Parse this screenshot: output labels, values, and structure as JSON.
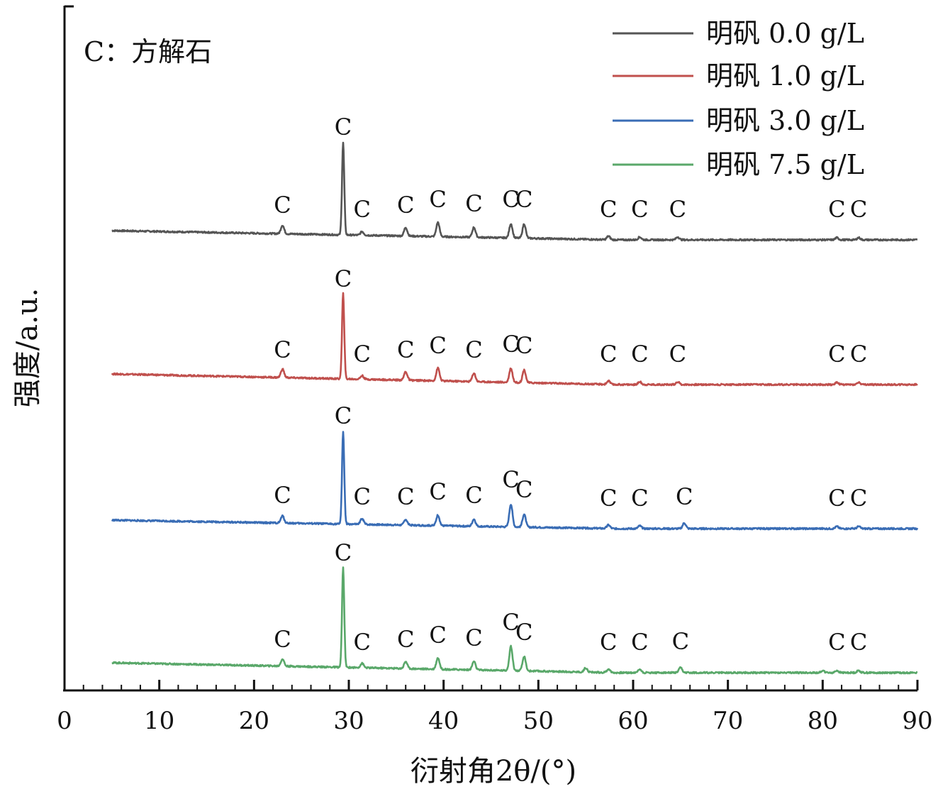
{
  "chart_data": {
    "type": "line",
    "title": "",
    "annotation": "C：方解石",
    "xlabel": "衍射角2θ/(°)",
    "ylabel": "强度/a.u.",
    "xlim": [
      0,
      90
    ],
    "xticks": [
      0,
      10,
      20,
      30,
      40,
      50,
      60,
      70,
      80,
      90
    ],
    "y_ticks_shown": false,
    "legend_position": "top-right",
    "peak_label_text": "C",
    "peak_positions": [
      23.0,
      29.4,
      31.4,
      36.0,
      39.4,
      43.2,
      47.1,
      48.5,
      57.4,
      60.7,
      64.7,
      81.5,
      83.8
    ],
    "series": [
      {
        "name": "明矾 0.0 g/L",
        "color": "#555555",
        "baseline_start": 13,
        "baseline_end": 0,
        "peaks": [
          {
            "x": 23.0,
            "h": 12
          },
          {
            "x": 29.4,
            "h": 130
          },
          {
            "x": 31.4,
            "h": 5
          },
          {
            "x": 36.0,
            "h": 12
          },
          {
            "x": 39.4,
            "h": 20
          },
          {
            "x": 43.2,
            "h": 14
          },
          {
            "x": 47.1,
            "h": 20
          },
          {
            "x": 48.5,
            "h": 20
          },
          {
            "x": 57.4,
            "h": 5
          },
          {
            "x": 60.7,
            "h": 4
          },
          {
            "x": 64.7,
            "h": 4
          },
          {
            "x": 81.5,
            "h": 3
          },
          {
            "x": 83.8,
            "h": 3
          }
        ]
      },
      {
        "name": "明矾 1.0 g/L",
        "color": "#c0504d",
        "baseline_start": 15,
        "baseline_end": 0,
        "peaks": [
          {
            "x": 23.0,
            "h": 12
          },
          {
            "x": 29.4,
            "h": 120
          },
          {
            "x": 31.4,
            "h": 5
          },
          {
            "x": 36.0,
            "h": 12
          },
          {
            "x": 39.4,
            "h": 18
          },
          {
            "x": 43.2,
            "h": 12
          },
          {
            "x": 47.1,
            "h": 20
          },
          {
            "x": 48.5,
            "h": 18
          },
          {
            "x": 57.4,
            "h": 5
          },
          {
            "x": 60.7,
            "h": 4
          },
          {
            "x": 64.7,
            "h": 4
          },
          {
            "x": 81.5,
            "h": 3
          },
          {
            "x": 83.8,
            "h": 3
          }
        ]
      },
      {
        "name": "明矾 3.0 g/L",
        "color": "#3a6db5",
        "baseline_start": 12,
        "baseline_end": 0,
        "peaks": [
          {
            "x": 23.0,
            "h": 10
          },
          {
            "x": 29.4,
            "h": 130
          },
          {
            "x": 31.4,
            "h": 8
          },
          {
            "x": 36.0,
            "h": 8
          },
          {
            "x": 39.4,
            "h": 15
          },
          {
            "x": 43.2,
            "h": 10
          },
          {
            "x": 47.1,
            "h": 32
          },
          {
            "x": 48.5,
            "h": 18
          },
          {
            "x": 57.4,
            "h": 5
          },
          {
            "x": 60.7,
            "h": 4
          },
          {
            "x": 65.4,
            "h": 8
          },
          {
            "x": 81.5,
            "h": 3
          },
          {
            "x": 83.8,
            "h": 3
          }
        ]
      },
      {
        "name": "明矾 7.5 g/L",
        "color": "#5aa86a",
        "baseline_start": 14,
        "baseline_end": 0,
        "peaks": [
          {
            "x": 23.0,
            "h": 10
          },
          {
            "x": 29.4,
            "h": 140
          },
          {
            "x": 31.4,
            "h": 6
          },
          {
            "x": 36.0,
            "h": 10
          },
          {
            "x": 39.4,
            "h": 16
          },
          {
            "x": 43.2,
            "h": 12
          },
          {
            "x": 47.1,
            "h": 34
          },
          {
            "x": 48.5,
            "h": 20
          },
          {
            "x": 55.0,
            "h": 6
          },
          {
            "x": 57.4,
            "h": 5
          },
          {
            "x": 60.7,
            "h": 5
          },
          {
            "x": 65.0,
            "h": 7
          },
          {
            "x": 80.0,
            "h": 3
          },
          {
            "x": 81.5,
            "h": 3
          },
          {
            "x": 83.8,
            "h": 3
          }
        ]
      }
    ]
  }
}
